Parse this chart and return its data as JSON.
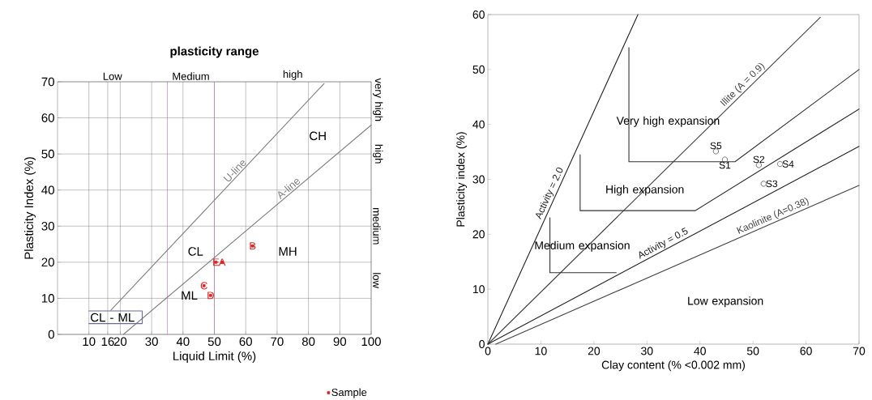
{
  "chart_data": [
    {
      "type": "line",
      "title": "plasticity range",
      "xlabel": "Liquid Limit (%)",
      "ylabel": "Plasticity Index (%)",
      "xlim": [
        0,
        100
      ],
      "ylim": [
        0,
        70
      ],
      "xticks": [
        10,
        16,
        20,
        30,
        40,
        50,
        60,
        70,
        80,
        90,
        100
      ],
      "yticks": [
        0,
        10,
        20,
        30,
        40,
        50,
        60,
        70
      ],
      "grid": true,
      "legend": "bottom right",
      "series": [
        {
          "name": "U-line",
          "color": "#808080",
          "x": [
            17,
            85
          ],
          "values": [
            6.7,
            69.5
          ]
        },
        {
          "name": "A-line",
          "color": "#808080",
          "x": [
            21,
            100
          ],
          "values": [
            0,
            58
          ]
        },
        {
          "color": "#6a6aa0",
          "x": [
            10,
            27,
            27,
            10
          ],
          "values": [
            3,
            3,
            6.5,
            6.5
          ]
        },
        {
          "name": "Sample",
          "type": "scatter",
          "marker": "square",
          "color": "#e02020",
          "x": [
            50.5,
            52.5,
            62.2,
            46.7,
            48.8
          ],
          "values": [
            20,
            20,
            24.5,
            13.5,
            10.8
          ],
          "value_labels": [
            "E",
            "A",
            "B",
            "C",
            "D"
          ]
        }
      ],
      "ref_lines": [
        {
          "axis": "x",
          "value": 35,
          "color": "#b070b0"
        },
        {
          "axis": "x",
          "value": 50,
          "color": "#b070b0"
        }
      ],
      "annotations": [
        "CH",
        "CL",
        "MH",
        "ML",
        "CL - ML",
        "Low",
        "Medium",
        "high",
        "low",
        "medium",
        "high",
        "very high"
      ]
    },
    {
      "type": "line",
      "xlabel": "Clay content (% <0.002 mm)",
      "ylabel": "Plasticity index (%)",
      "xlim": [
        0,
        70
      ],
      "ylim": [
        0,
        60
      ],
      "xticks": [
        0,
        10,
        20,
        30,
        40,
        50,
        60,
        70
      ],
      "yticks": [
        0,
        10,
        20,
        30,
        40,
        50,
        60
      ],
      "grid": false,
      "series": [
        {
          "name": "Activity = 2.0",
          "color": "#222222",
          "x": [
            0,
            28.3
          ],
          "values": [
            0,
            60
          ]
        },
        {
          "name": "Illite (A = 0.9)",
          "color": "#444444",
          "x": [
            0,
            62.7
          ],
          "values": [
            0,
            59.5
          ]
        },
        {
          "name": "Activity = 0.5",
          "color": "#222222",
          "x": [
            0,
            70
          ],
          "values": [
            0,
            36
          ]
        },
        {
          "name": "Kaolinite (A=0.38)",
          "color": "#444444",
          "x": [
            1.5,
            70
          ],
          "values": [
            0,
            28.9
          ]
        },
        {
          "color": "#333333",
          "x": [
            11.7,
            11.7,
            24.2
          ],
          "values": [
            23,
            13,
            13
          ]
        },
        {
          "color": "#333333",
          "x": [
            17.4,
            17.4,
            39.1,
            70
          ],
          "values": [
            34.5,
            24.3,
            24.3,
            42.8
          ]
        },
        {
          "color": "#333333",
          "x": [
            26.6,
            26.6,
            46.6,
            70
          ],
          "values": [
            54,
            33.2,
            33.2,
            50
          ]
        },
        {
          "type": "scatter",
          "marker": "circle",
          "color": "#555555",
          "x": [
            44.7,
            51.1,
            52,
            55.1,
            43
          ],
          "values": [
            33.6,
            32.6,
            29.2,
            32.8,
            35.1
          ],
          "value_labels": [
            "S1",
            "S2",
            "S3",
            "S4",
            "S5"
          ]
        }
      ],
      "annotations": [
        "Very high expansion",
        "High expansion",
        "Medium expansion",
        "Low expansion"
      ]
    }
  ]
}
